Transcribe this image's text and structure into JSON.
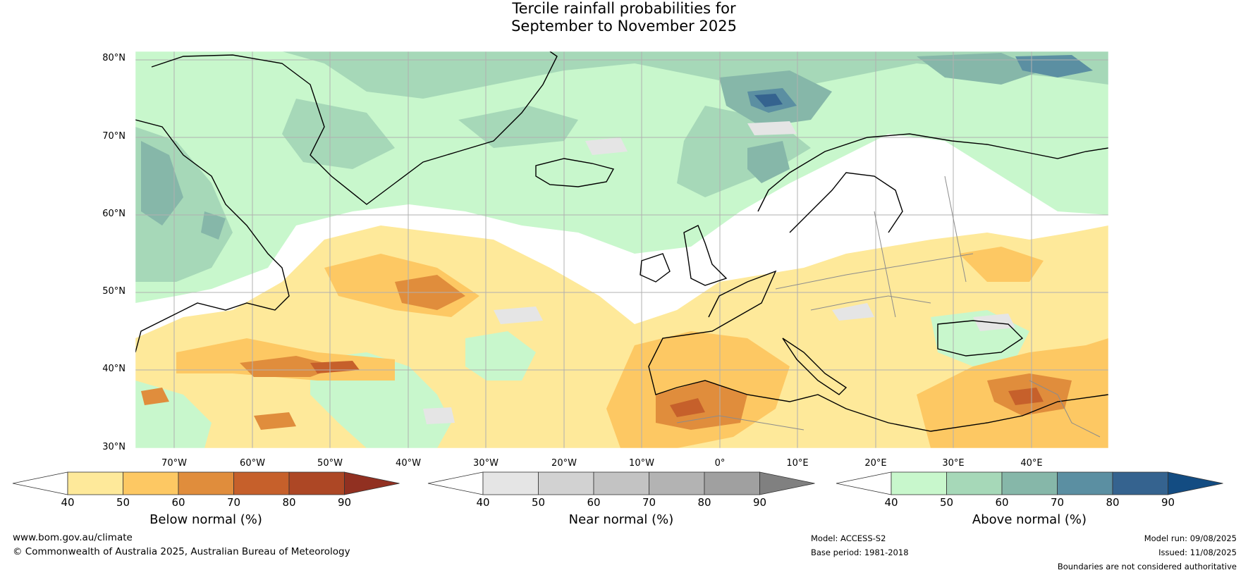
{
  "title": {
    "line1": "Tercile rainfall probabilities for",
    "line2": "September to November 2025"
  },
  "map": {
    "lat_labels": [
      "80°N",
      "70°N",
      "60°N",
      "50°N",
      "40°N",
      "30°N"
    ],
    "lon_labels": [
      "70°W",
      "60°W",
      "50°W",
      "40°W",
      "30°W",
      "20°W",
      "10°W",
      "0°",
      "10°E",
      "20°E",
      "30°E",
      "40°E"
    ],
    "ocean_color": "#ffffff",
    "coast_color": "#000000",
    "border_color": "#8c8c8c",
    "grid_color": "#b0b0b0"
  },
  "colorbars": [
    {
      "id": "below",
      "title": "Below normal (%)",
      "ticks": [
        "40",
        "50",
        "60",
        "70",
        "80",
        "90"
      ],
      "colors": [
        "#ffffff",
        "#fee99a",
        "#fdc863",
        "#e08d3c",
        "#c6602b",
        "#ad4725",
        "#913021"
      ]
    },
    {
      "id": "near",
      "title": "Near normal (%)",
      "ticks": [
        "40",
        "50",
        "60",
        "70",
        "80",
        "90"
      ],
      "colors": [
        "#ffffff",
        "#e5e5e5",
        "#d2d2d2",
        "#c3c3c3",
        "#b3b3b3",
        "#a0a0a0",
        "#808080"
      ]
    },
    {
      "id": "above",
      "title": "Above normal (%)",
      "ticks": [
        "40",
        "50",
        "60",
        "70",
        "80",
        "90"
      ],
      "colors": [
        "#ffffff",
        "#c8f7cc",
        "#a6d8b8",
        "#86b7a9",
        "#5b8fa2",
        "#35638f",
        "#134c82"
      ]
    }
  ],
  "footer": {
    "website": "www.bom.gov.au/climate",
    "copyright": "© Commonwealth of Australia 2025, Australian Bureau of Meteorology",
    "model": "Model: ACCESS-S2",
    "base_period": "Base period: 1981-2018",
    "model_run": "Model run: 09/08/2025",
    "issued": "Issued: 11/08/2025",
    "disclaimer": "Boundaries are not considered authoritative"
  }
}
